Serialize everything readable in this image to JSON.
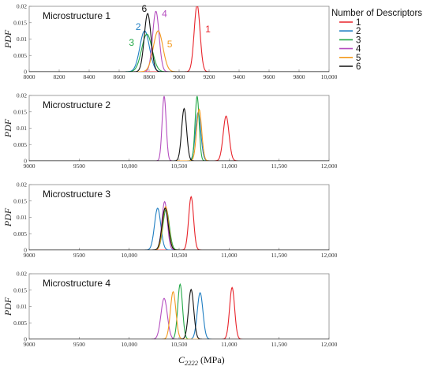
{
  "ylabel": "PDF",
  "xlabel_main": "C",
  "xlabel_sub": "2222",
  "xlabel_unit": " (MPa)",
  "legend": {
    "title": "Number of Descriptors",
    "entries": [
      "1",
      "2",
      "3",
      "4",
      "5",
      "6"
    ]
  },
  "colors": {
    "1": "#e8232a",
    "2": "#1f7ec2",
    "3": "#22a846",
    "4": "#b54fc0",
    "5": "#f39a1e",
    "6": "#111111"
  },
  "chart_data": [
    {
      "type": "line",
      "title": "Microstructure 1",
      "xlim": [
        8000,
        10000
      ],
      "ylim": [
        0,
        0.02
      ],
      "xticks": [
        "8000",
        "8200",
        "8400",
        "8600",
        "8800",
        "9000",
        "9200",
        "9400",
        "9600",
        "9800",
        "10,000"
      ],
      "yticks": [
        "0",
        "0.005",
        "0.01",
        "0.015",
        "0.02"
      ],
      "series": [
        {
          "name": "1",
          "mean": 9120,
          "peak": 0.0205
        },
        {
          "name": "2",
          "mean": 8770,
          "peak": 0.0125
        },
        {
          "name": "3",
          "mean": 8785,
          "peak": 0.0115
        },
        {
          "name": "4",
          "mean": 8845,
          "peak": 0.0185
        },
        {
          "name": "5",
          "mean": 8860,
          "peak": 0.0125
        },
        {
          "name": "6",
          "mean": 8790,
          "peak": 0.0178
        }
      ],
      "annotations": [
        {
          "text": "6",
          "series": "6",
          "x": 8750,
          "y": 0.0183
        },
        {
          "text": "2",
          "series": "2",
          "x": 8710,
          "y": 0.0128
        },
        {
          "text": "3",
          "series": "3",
          "x": 8665,
          "y": 0.008
        },
        {
          "text": "4",
          "series": "4",
          "x": 8885,
          "y": 0.0168
        },
        {
          "text": "5",
          "series": "5",
          "x": 8920,
          "y": 0.0075
        },
        {
          "text": "1",
          "series": "1",
          "x": 9175,
          "y": 0.012
        }
      ]
    },
    {
      "type": "line",
      "title": "Microstructure 2",
      "xlim": [
        9000,
        12000
      ],
      "ylim": [
        0,
        0.02
      ],
      "xticks": [
        "9000",
        "9500",
        "10,000",
        "10,500",
        "11,000",
        "11,500",
        "12,000"
      ],
      "yticks": [
        "0",
        "0.005",
        "0.01",
        "0.015",
        "0.02"
      ],
      "series": [
        {
          "name": "1",
          "mean": 10970,
          "peak": 0.0137
        },
        {
          "name": "2",
          "mean": 10690,
          "peak": 0.0148
        },
        {
          "name": "3",
          "mean": 10680,
          "peak": 0.0198
        },
        {
          "name": "4",
          "mean": 10350,
          "peak": 0.0198
        },
        {
          "name": "5",
          "mean": 10700,
          "peak": 0.0158
        },
        {
          "name": "6",
          "mean": 10550,
          "peak": 0.016
        }
      ]
    },
    {
      "type": "line",
      "title": "Microstructure 3",
      "xlim": [
        9000,
        12000
      ],
      "ylim": [
        0,
        0.02
      ],
      "xticks": [
        "9000",
        "9500",
        "10,000",
        "10,500",
        "11,000",
        "11,500",
        "12,000"
      ],
      "yticks": [
        "0",
        "0.005",
        "0.01",
        "0.015",
        "0.02"
      ],
      "series": [
        {
          "name": "1",
          "mean": 10620,
          "peak": 0.0163
        },
        {
          "name": "2",
          "mean": 10285,
          "peak": 0.0128
        },
        {
          "name": "3",
          "mean": 10370,
          "peak": 0.0125
        },
        {
          "name": "4",
          "mean": 10355,
          "peak": 0.0148
        },
        {
          "name": "5",
          "mean": 10365,
          "peak": 0.0133
        },
        {
          "name": "6",
          "mean": 10360,
          "peak": 0.0128
        }
      ]
    },
    {
      "type": "line",
      "title": "Microstructure 4",
      "xlim": [
        9000,
        12000
      ],
      "ylim": [
        0,
        0.02
      ],
      "xticks": [
        "9000",
        "9500",
        "10,000",
        "10,500",
        "11,000",
        "11,500",
        "12,000"
      ],
      "yticks": [
        "0",
        "0.005",
        "0.01",
        "0.015",
        "0.02"
      ],
      "series": [
        {
          "name": "1",
          "mean": 11030,
          "peak": 0.0158
        },
        {
          "name": "2",
          "mean": 10710,
          "peak": 0.0142
        },
        {
          "name": "3",
          "mean": 10510,
          "peak": 0.0168
        },
        {
          "name": "4",
          "mean": 10350,
          "peak": 0.0125
        },
        {
          "name": "5",
          "mean": 10440,
          "peak": 0.0145
        },
        {
          "name": "6",
          "mean": 10620,
          "peak": 0.0152
        }
      ]
    }
  ]
}
